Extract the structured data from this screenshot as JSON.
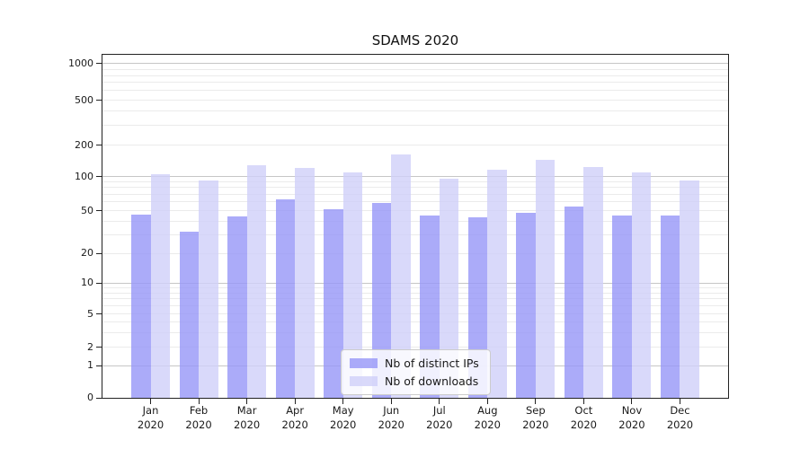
{
  "chart_data": {
    "type": "bar",
    "title": "SDAMS 2020",
    "xlabel": "",
    "ylabel": "",
    "categories": [
      "Jan 2020",
      "Feb 2020",
      "Mar 2020",
      "Apr 2020",
      "May 2020",
      "Jun 2020",
      "Jul 2020",
      "Aug 2020",
      "Sep 2020",
      "Oct 2020",
      "Nov 2020",
      "Dec 2020"
    ],
    "category_top_lines": [
      "Jan",
      "Feb",
      "Mar",
      "Apr",
      "May",
      "Jun",
      "Jul",
      "Aug",
      "Sep",
      "Oct",
      "Nov",
      "Dec"
    ],
    "category_bottom_line": "2020",
    "series": [
      {
        "name": "Nb of distinct IPs",
        "color": "rgba(150,150,247,0.8)",
        "values": [
          46,
          32,
          44,
          63,
          51,
          58,
          45,
          43,
          48,
          54,
          45,
          45
        ]
      },
      {
        "name": "Nb of downloads",
        "color": "rgba(207,207,249,0.8)",
        "values": [
          105,
          92,
          128,
          122,
          110,
          163,
          95,
          116,
          146,
          124,
          110,
          93
        ]
      }
    ],
    "yticks": [
      0,
      1,
      2,
      5,
      10,
      20,
      50,
      100,
      200,
      500,
      1000
    ],
    "ytick_labels": [
      "0",
      "1",
      "2",
      "5",
      "10",
      "20",
      "50",
      "100",
      "200",
      "500",
      "1000"
    ],
    "ylim": [
      0,
      1000
    ],
    "yscale": "symlog",
    "grid": true,
    "legend_position": "lower center"
  },
  "colors": {
    "bar_dark": "rgba(150,150,247,0.8)",
    "bar_light": "rgba(207,207,249,0.8)",
    "major_grid": "#c6c6c6",
    "minor_grid": "#ebebeb",
    "axis": "#222222",
    "text": "#1a1a1a"
  }
}
